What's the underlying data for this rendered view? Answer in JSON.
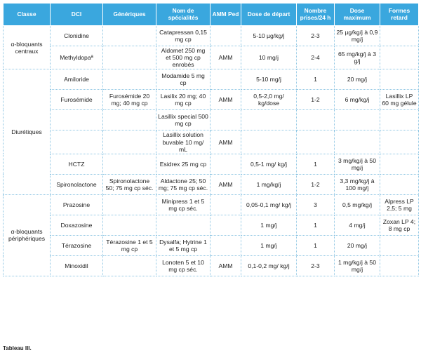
{
  "table": {
    "headers": [
      "Classe",
      "DCI",
      "Génériques",
      "Nom de spécialités",
      "AMM Ped",
      "Dose de départ",
      "Nombre prises/24 h",
      "Dose maximum",
      "Formes retard"
    ],
    "groups": [
      {
        "classe": "α-bloquants centraux",
        "rows": [
          {
            "dci": "Clonidine",
            "generiques": "",
            "specialites": "Catapressan 0,15 mg cp",
            "amm": "",
            "dose_depart": "5-10 µg/kg/j",
            "prises": "2-3",
            "dose_max": "25 µg/kg/j à 0,9 mg/j",
            "retard": ""
          },
          {
            "dci": "Methyldopaª",
            "generiques": "",
            "specialites": "Aldomet 250 mg et 500 mg cp enrobés",
            "amm": "AMM",
            "dose_depart": "10 mg/j",
            "prises": "2-4",
            "dose_max": "65 mg/kg/j à 3 g/j",
            "retard": ""
          }
        ]
      },
      {
        "classe": "Diurétiques",
        "rows": [
          {
            "dci": "Amiloride",
            "generiques": "",
            "specialites": "Modamide 5 mg cp",
            "amm": "",
            "dose_depart": "5-10 mg/j",
            "prises": "1",
            "dose_max": "20 mg/j",
            "retard": ""
          },
          {
            "dci": "Furosémide",
            "generiques": "Furosémide 20 mg; 40 mg cp",
            "specialites": "Lasilix 20 mg; 40 mg cp",
            "amm": "AMM",
            "dose_depart": "0,5-2,0 mg/ kg/dose",
            "prises": "1-2",
            "dose_max": "6 mg/kg/j",
            "retard": "Lasillix LP 60 mg gélule"
          },
          {
            "dci": "",
            "generiques": "",
            "specialites": "Lasillix special 500 mg cp",
            "amm": "",
            "dose_depart": "",
            "prises": "",
            "dose_max": "",
            "retard": ""
          },
          {
            "dci": "",
            "generiques": "",
            "specialites": "Lasillix solution buvable 10 mg/ mL",
            "amm": "AMM",
            "dose_depart": "",
            "prises": "",
            "dose_max": "",
            "retard": ""
          },
          {
            "dci": "HCTZ",
            "generiques": "",
            "specialites": "Esidrex 25 mg cp",
            "amm": "",
            "dose_depart": "0,5-1 mg/ kg/j",
            "prises": "1",
            "dose_max": "3 mg/kg/j à 50 mg/j",
            "retard": ""
          },
          {
            "dci": "Spironolactone",
            "generiques": "Spironolactone 50; 75 mg cp séc.",
            "specialites": "Aldactone 25; 50 mg; 75 mg cp séc.",
            "amm": "AMM",
            "dose_depart": "1 mg/kg/j",
            "prises": "1-2",
            "dose_max": "3,3 mg/kg/j à 100 mg/j",
            "retard": ""
          }
        ]
      },
      {
        "classe": "α-bloquants périphériques",
        "rows": [
          {
            "dci": "Prazosine",
            "generiques": "",
            "specialites": "Minipress 1 et 5 mg cp séc.",
            "amm": "",
            "dose_depart": "0,05-0,1 mg/ kg/j",
            "prises": "3",
            "dose_max": "0,5 mg/kg/j",
            "retard": "Alpress LP 2,5; 5 mg"
          },
          {
            "dci": "Doxazosine",
            "generiques": "",
            "specialites": "",
            "amm": "",
            "dose_depart": "1 mg/j",
            "prises": "1",
            "dose_max": "4 mg/j",
            "retard": "Zoxan LP 4; 8 mg cp"
          },
          {
            "dci": "Térazosine",
            "generiques": "Térazosine 1 et 5 mg cp",
            "specialites": "Dysalfa; Hytrine 1 et 5 mg cp",
            "amm": "",
            "dose_depart": "1 mg/j",
            "prises": "1",
            "dose_max": "20 mg/j",
            "retard": ""
          },
          {
            "dci": "Minoxidil",
            "generiques": "",
            "specialites": "Lonoten 5 et 10 mg cp séc.",
            "amm": "AMM",
            "dose_depart": "0,1-0,2 mg/ kg/j",
            "prises": "2-3",
            "dose_max": "1 mg/kg/j à 50 mg/j",
            "retard": ""
          }
        ]
      }
    ]
  },
  "caption": "Tableau III."
}
